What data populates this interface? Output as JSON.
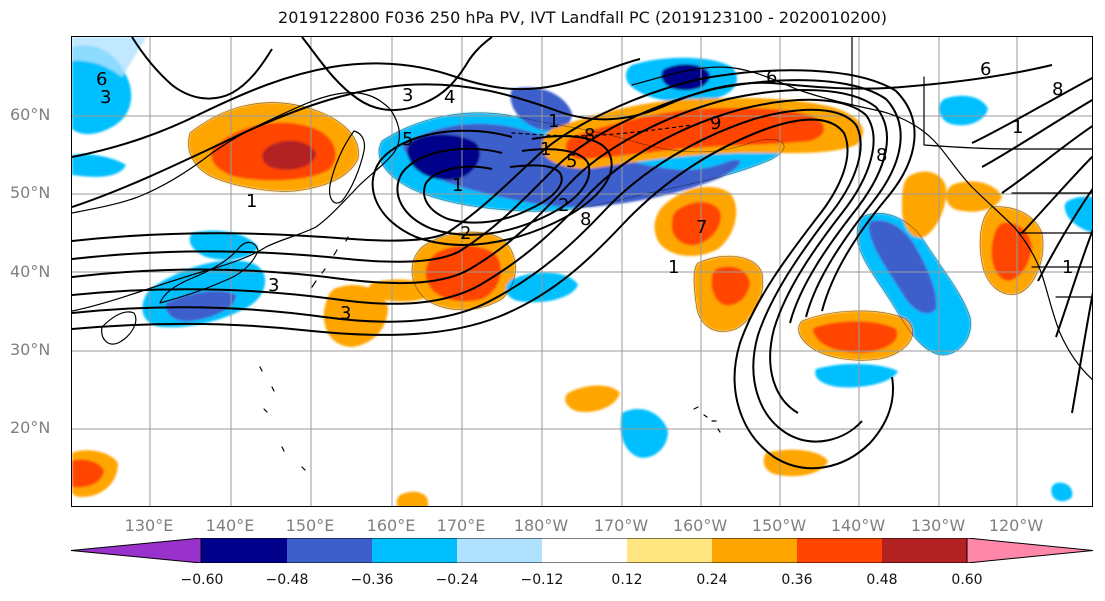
{
  "title": "2019122800 F036 250 hPa PV, IVT Landfall PC (2019123100 - 2020010200)",
  "latitude_labels": [
    "60°N",
    "50°N",
    "40°N",
    "30°N",
    "20°N"
  ],
  "longitude_labels": [
    "130°E",
    "140°E",
    "150°E",
    "160°E",
    "170°E",
    "180°W",
    "170°W",
    "160°W",
    "150°W",
    "140°W",
    "130°W",
    "120°W"
  ],
  "contour_labels": [
    "6",
    "6",
    "6",
    "3",
    "4",
    "1",
    "8",
    "9",
    "5",
    "5",
    "1",
    "2",
    "3",
    "8",
    "1",
    "2",
    "1",
    "7",
    "3",
    "8",
    "1",
    "3",
    "1",
    "1",
    "8"
  ],
  "colorbar": {
    "ticks": [
      "−0.60",
      "−0.48",
      "−0.36",
      "−0.24",
      "−0.12",
      "0.12",
      "0.24",
      "0.36",
      "0.48",
      "0.60"
    ],
    "colors": [
      "#9932CC",
      "#00008B",
      "#3C5FCC",
      "#00BFFF",
      "#B0E2FF",
      "#FFFFFF",
      "#FFE680",
      "#FFA500",
      "#FF4500",
      "#B22222",
      "#FF88AA"
    ]
  },
  "colors": {
    "contour": "#000000",
    "grid": "#999999",
    "coast": "#000000",
    "axis_text": "#808080"
  }
}
